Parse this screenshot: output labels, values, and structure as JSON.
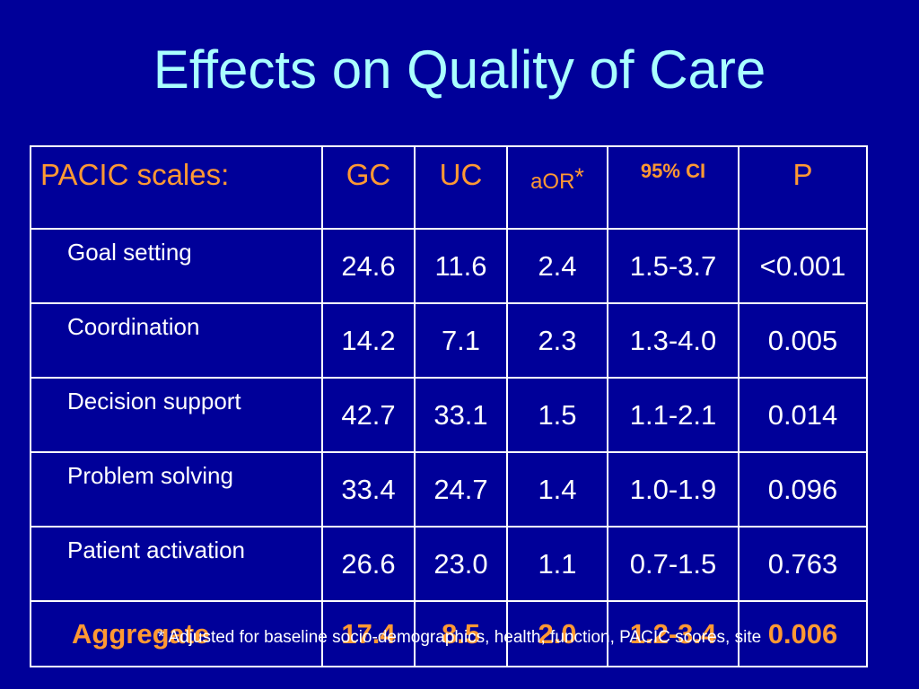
{
  "title": "Effects on Quality of Care",
  "colors": {
    "background": "#000099",
    "title": "#aaffff",
    "header_text": "#ff9933",
    "body_text": "#ffffff",
    "aggregate_text": "#ff9933"
  },
  "table": {
    "headers": {
      "scales": "PACIC scales:",
      "gc": "GC",
      "uc": "UC",
      "aor": "aOR",
      "aor_mark": "*",
      "ci": "95% CI",
      "p": "P"
    },
    "rows": [
      {
        "label": "Goal setting",
        "gc": "24.6",
        "uc": "11.6",
        "aor": "2.4",
        "ci": "1.5-3.7",
        "p": "<0.001"
      },
      {
        "label": "Coordination",
        "gc": "14.2",
        "uc": "7.1",
        "aor": "2.3",
        "ci": "1.3-4.0",
        "p": "0.005"
      },
      {
        "label": "Decision support",
        "gc": "42.7",
        "uc": "33.1",
        "aor": "1.5",
        "ci": "1.1-2.1",
        "p": "0.014"
      },
      {
        "label": "Problem solving",
        "gc": "33.4",
        "uc": "24.7",
        "aor": "1.4",
        "ci": "1.0-1.9",
        "p": "0.096"
      },
      {
        "label": "Patient activation",
        "gc": "26.6",
        "uc": "23.0",
        "aor": "1.1",
        "ci": "0.7-1.5",
        "p": "0.763"
      }
    ],
    "aggregate": {
      "label": "Aggregate",
      "gc": "17.4",
      "uc": "8.5",
      "aor": "2.0",
      "ci": "1.2-3.4",
      "p": "0.006"
    }
  },
  "footnote": "* Adjusted for baseline socio-demographics, health, function, PACIC scores, site"
}
